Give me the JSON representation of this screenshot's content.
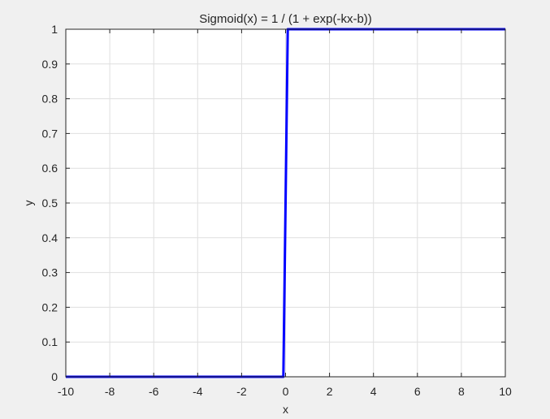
{
  "chart_data": {
    "type": "line",
    "title": "Sigmoid(x) = 1 / (1 + exp(-kx-b))",
    "xlabel": "x",
    "ylabel": "y",
    "xlim": [
      -10,
      10
    ],
    "ylim": [
      0,
      1
    ],
    "xticks": [
      -10,
      -8,
      -6,
      -4,
      -2,
      0,
      2,
      4,
      6,
      8,
      10
    ],
    "yticks": [
      0,
      0.1,
      0.2,
      0.3,
      0.4,
      0.5,
      0.6,
      0.7,
      0.8,
      0.9,
      1
    ],
    "grid": true,
    "series": [
      {
        "color": "#0000ff",
        "x": [
          -10,
          -0.1,
          0.1,
          10
        ],
        "y": [
          0,
          0,
          1,
          1
        ]
      }
    ]
  }
}
